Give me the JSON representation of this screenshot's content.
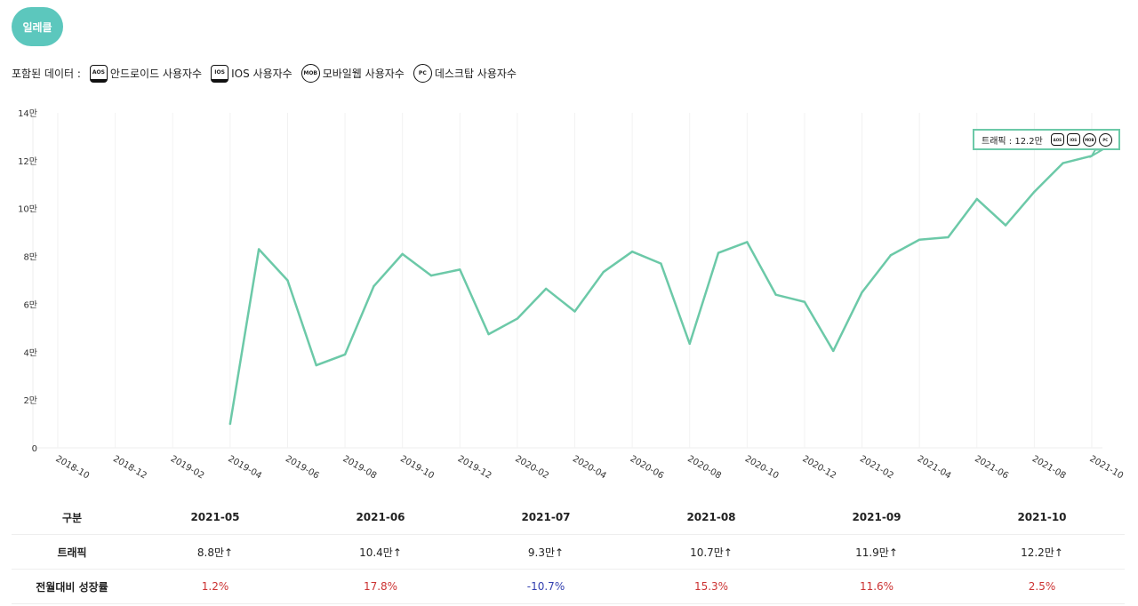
{
  "filter_button": "일레클",
  "legend": {
    "label": "포함된 데이터 :",
    "items": [
      {
        "icon": "AOS",
        "label": "안드로이드 사용자수",
        "shape": "box"
      },
      {
        "icon": "IOS",
        "label": "IOS 사용자수",
        "shape": "box"
      },
      {
        "icon": "MOB",
        "label": "모바일웹 사용자수",
        "shape": "circle"
      },
      {
        "icon": "PC",
        "label": "데스크탑 사용자수",
        "shape": "circle"
      }
    ]
  },
  "tooltip": {
    "text": "트래픽 : 12.2만",
    "icons": [
      "AOS",
      "IOS",
      "MOB",
      "PC"
    ]
  },
  "chart_data": {
    "type": "line",
    "title": "",
    "xlabel": "",
    "ylabel": "",
    "color": "#6cc9a8",
    "grid": "vertical",
    "ylim": [
      0,
      14
    ],
    "yticks": [
      "0",
      "2만",
      "4만",
      "6만",
      "8만",
      "10만",
      "12만",
      "14만"
    ],
    "xticks": [
      "2018-10",
      "2018-12",
      "2019-02",
      "2019-04",
      "2019-06",
      "2019-08",
      "2019-10",
      "2019-12",
      "2020-02",
      "2020-04",
      "2020-06",
      "2020-08",
      "2020-10",
      "2020-12",
      "2021-02",
      "2021-04",
      "2021-06",
      "2021-08",
      "2021-10"
    ],
    "x": [
      "2019-04",
      "2019-05",
      "2019-06",
      "2019-07",
      "2019-08",
      "2019-09",
      "2019-10",
      "2019-11",
      "2019-12",
      "2020-01",
      "2020-02",
      "2020-03",
      "2020-04",
      "2020-05",
      "2020-06",
      "2020-07",
      "2020-08",
      "2020-09",
      "2020-10",
      "2020-11",
      "2020-12",
      "2021-01",
      "2021-02",
      "2021-03",
      "2021-04",
      "2021-05",
      "2021-06",
      "2021-07",
      "2021-08",
      "2021-09",
      "2021-10"
    ],
    "values": [
      1.0,
      8.3,
      7.0,
      3.45,
      3.9,
      6.75,
      8.1,
      7.2,
      7.45,
      4.75,
      5.4,
      6.65,
      5.7,
      7.35,
      8.2,
      7.7,
      4.35,
      8.15,
      8.6,
      6.4,
      6.1,
      4.05,
      6.5,
      8.05,
      8.7,
      8.8,
      10.4,
      9.3,
      10.7,
      11.9,
      12.2
    ]
  },
  "table": {
    "header": [
      "구분",
      "2021-05",
      "2021-06",
      "2021-07",
      "2021-08",
      "2021-09",
      "2021-10"
    ],
    "traffic_label": "트래픽",
    "traffic": [
      "8.8만↑",
      "10.4만↑",
      "9.3만↑",
      "10.7만↑",
      "11.9만↑",
      "12.2만↑"
    ],
    "growth_label": "전월대비 성장률",
    "growth": [
      "1.2%",
      "17.8%",
      "-10.7%",
      "15.3%",
      "11.6%",
      "2.5%"
    ],
    "colors": {
      "positive": "#cc3333",
      "negative": "#3340b0"
    }
  }
}
